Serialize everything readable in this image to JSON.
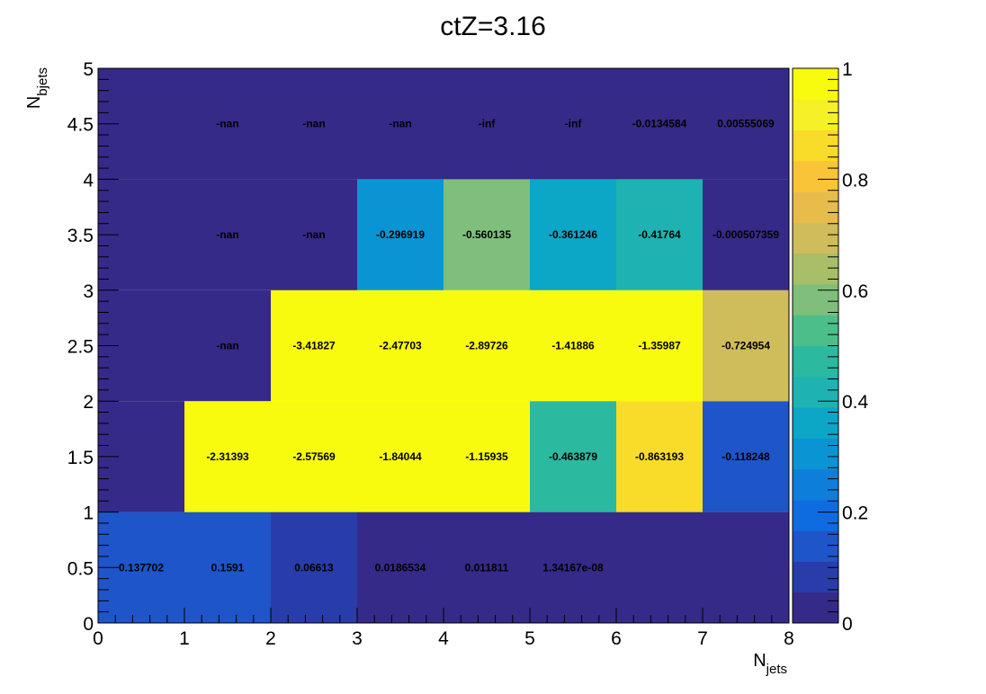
{
  "chart_data": {
    "type": "heatmap",
    "title": "ctZ=3.16",
    "xlabel": {
      "main": "N",
      "sub": "jets"
    },
    "ylabel": {
      "main": "N",
      "sub": "bjets"
    },
    "xlim": [
      0,
      8
    ],
    "ylim": [
      0,
      5
    ],
    "x_ticks": [
      "0",
      "1",
      "2",
      "3",
      "4",
      "5",
      "6",
      "7",
      "8"
    ],
    "y_ticks": [
      "0",
      "0.5",
      "1",
      "1.5",
      "2",
      "2.5",
      "3",
      "3.5",
      "4",
      "4.5",
      "5"
    ],
    "colorbar": {
      "range": [
        0,
        1
      ],
      "ticks": [
        "0",
        "0.2",
        "0.4",
        "0.6",
        "0.8",
        "1"
      ]
    },
    "x_bins": [
      0,
      1,
      2,
      3,
      4,
      5,
      6,
      7,
      8
    ],
    "y_bins": [
      0,
      1,
      2,
      3,
      4,
      5
    ],
    "cells": [
      [
        {
          "label": "0.137702",
          "color": 0.12
        },
        {
          "label": "0.1591",
          "color": 0.16
        },
        {
          "label": "0.06613",
          "color": 0.07
        },
        {
          "label": "0.0186534",
          "color": 0.02
        },
        {
          "label": "0.011811",
          "color": 0.01
        },
        {
          "label": "1.34167e-08",
          "color": 0.0
        },
        {
          "label": "",
          "color": 0.0
        },
        {
          "label": "",
          "color": 0.0
        }
      ],
      [
        {
          "label": "",
          "color": 0.0
        },
        {
          "label": "-2.31393",
          "color": 1.0
        },
        {
          "label": "-2.57569",
          "color": 1.0
        },
        {
          "label": "-1.84044",
          "color": 1.0
        },
        {
          "label": "-1.15935",
          "color": 1.0
        },
        {
          "label": "-0.463879",
          "color": 0.46
        },
        {
          "label": "-0.863193",
          "color": 0.86
        },
        {
          "label": "-0.118248",
          "color": 0.12
        }
      ],
      [
        {
          "label": "",
          "color": 0.0
        },
        {
          "label": "-nan",
          "color": null
        },
        {
          "label": "-3.41827",
          "color": 1.0
        },
        {
          "label": "-2.47703",
          "color": 1.0
        },
        {
          "label": "-2.89726",
          "color": 1.0
        },
        {
          "label": "-1.41886",
          "color": 1.0
        },
        {
          "label": "-1.35987",
          "color": 1.0
        },
        {
          "label": "-0.724954",
          "color": 0.72
        }
      ],
      [
        {
          "label": "",
          "color": 0.0
        },
        {
          "label": "-nan",
          "color": null
        },
        {
          "label": "-nan",
          "color": null
        },
        {
          "label": "-0.296919",
          "color": 0.3
        },
        {
          "label": "-0.560135",
          "color": 0.56
        },
        {
          "label": "-0.361246",
          "color": 0.36
        },
        {
          "label": "-0.41764",
          "color": 0.42
        },
        {
          "label": "-0.000507359",
          "color": 0.0
        }
      ],
      [
        {
          "label": "",
          "color": 0.0
        },
        {
          "label": "-nan",
          "color": null
        },
        {
          "label": "-nan",
          "color": null
        },
        {
          "label": "-nan",
          "color": null
        },
        {
          "label": "-inf",
          "color": null
        },
        {
          "label": "-inf",
          "color": null
        },
        {
          "label": "-0.0134584",
          "color": 0.01
        },
        {
          "label": "0.00555069",
          "color": 0.01
        }
      ]
    ],
    "palette": [
      "#352a87",
      "#283da9",
      "#1e55c9",
      "#0f6ce0",
      "#0d7fdb",
      "#0a94d3",
      "#0ca6c7",
      "#1eb2b2",
      "#2bb99f",
      "#4cbe89",
      "#7fbf7b",
      "#a7bf69",
      "#cfbc5a",
      "#e7bc4a",
      "#f9c437",
      "#f9db2a",
      "#f6f026",
      "#f9fb0e"
    ],
    "nan_color": "#352a87"
  }
}
